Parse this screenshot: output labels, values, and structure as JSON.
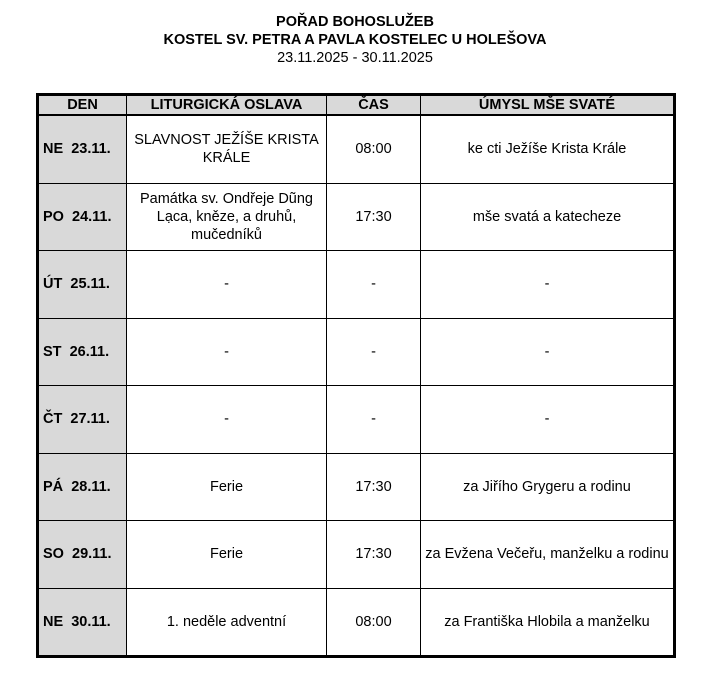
{
  "title": "POŘAD BOHOSLUŽEB",
  "subtitle": "KOSTEL SV. PETRA A PAVLA KOSTELEC U HOLEŠOVA",
  "date_range": "23.11.2025 - 30.11.2025",
  "headers": [
    "DEN",
    "LITURGICKÁ OSLAVA",
    "ČAS",
    "ÚMYSL MŠE SVATÉ"
  ],
  "rows": [
    {
      "day": "NE  23.11.",
      "celebration": "SLAVNOST JEŽÍŠE KRISTA KRÁLE",
      "time": "08:00",
      "intention": "ke cti Ježíše Krista Krále"
    },
    {
      "day": "PO  24.11.",
      "celebration": "Památka sv. Ondřeje Dũng Lạca, kněze, a druhů, mučedníků",
      "time": "17:30",
      "intention": "mše svatá a katecheze"
    },
    {
      "day": "ÚT  25.11.",
      "celebration": "-",
      "time": "-",
      "intention": "-"
    },
    {
      "day": "ST  26.11.",
      "celebration": "-",
      "time": "-",
      "intention": "-"
    },
    {
      "day": "ČT  27.11.",
      "celebration": "-",
      "time": "-",
      "intention": "-"
    },
    {
      "day": "PÁ  28.11.",
      "celebration": "Ferie",
      "time": "17:30",
      "intention": "za Jiřího Grygeru a rodinu"
    },
    {
      "day": "SO  29.11.",
      "celebration": "Ferie",
      "time": "17:30",
      "intention": "za Evžena Večeřu, manželku a rodinu"
    },
    {
      "day": "NE  30.11.",
      "celebration": "1. neděle adventní",
      "time": "08:00",
      "intention": "za Františka Hlobila a manželku"
    }
  ]
}
